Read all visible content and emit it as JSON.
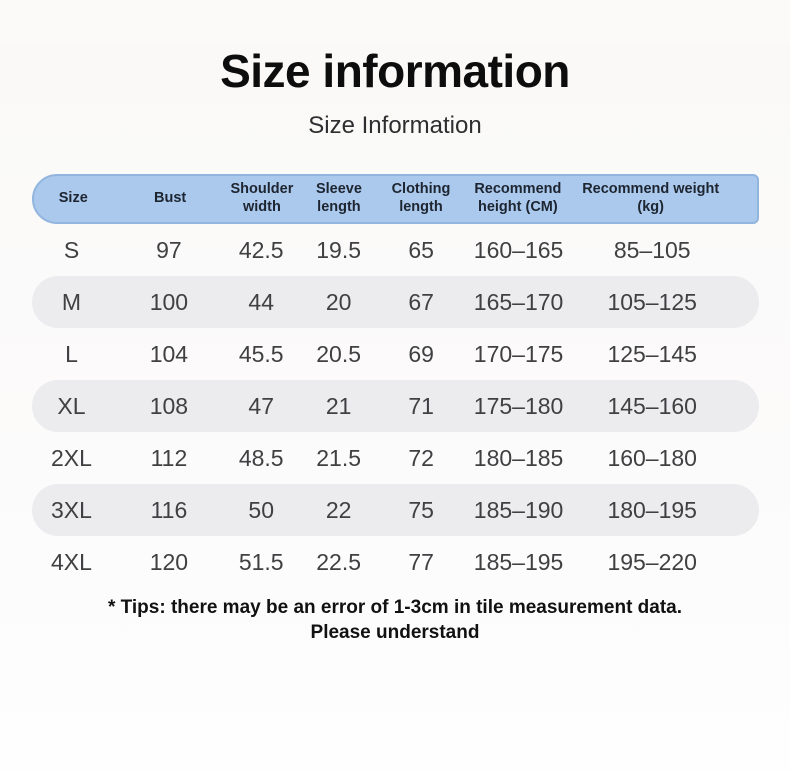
{
  "page": {
    "title": "Size information",
    "subtitle": "Size Information",
    "tips_line1": "* Tips: there may be an error of 1-3cm in tile measurement data.",
    "tips_line2": "Please understand"
  },
  "table": {
    "columns": [
      "Size",
      "Bust",
      "Shoulder width",
      "Sleeve length",
      "Clothing length",
      "Recommend height (CM)",
      "Recommend weight (kg)"
    ],
    "rows": [
      [
        "S",
        "97",
        "42.5",
        "19.5",
        "65",
        "160–165",
        "85–105"
      ],
      [
        "M",
        "100",
        "44",
        "20",
        "67",
        "165–170",
        "105–125"
      ],
      [
        "L",
        "104",
        "45.5",
        "20.5",
        "69",
        "170–175",
        "125–145"
      ],
      [
        "XL",
        "108",
        "47",
        "21",
        "71",
        "175–180",
        "145–160"
      ],
      [
        "2XL",
        "112",
        "48.5",
        "21.5",
        "72",
        "180–185",
        "160–180"
      ],
      [
        "3XL",
        "116",
        "50",
        "22",
        "75",
        "185–190",
        "180–195"
      ],
      [
        "4XL",
        "120",
        "51.5",
        "22.5",
        "77",
        "185–195",
        "195–220"
      ]
    ]
  },
  "colors": {
    "page_bg": "#fbfaf9",
    "header_bg": "#abc9ed",
    "header_border": "#92b5dd",
    "header_text": "#1d2531",
    "row_alt_bg": "#ececee",
    "cell_text": "#404043"
  }
}
